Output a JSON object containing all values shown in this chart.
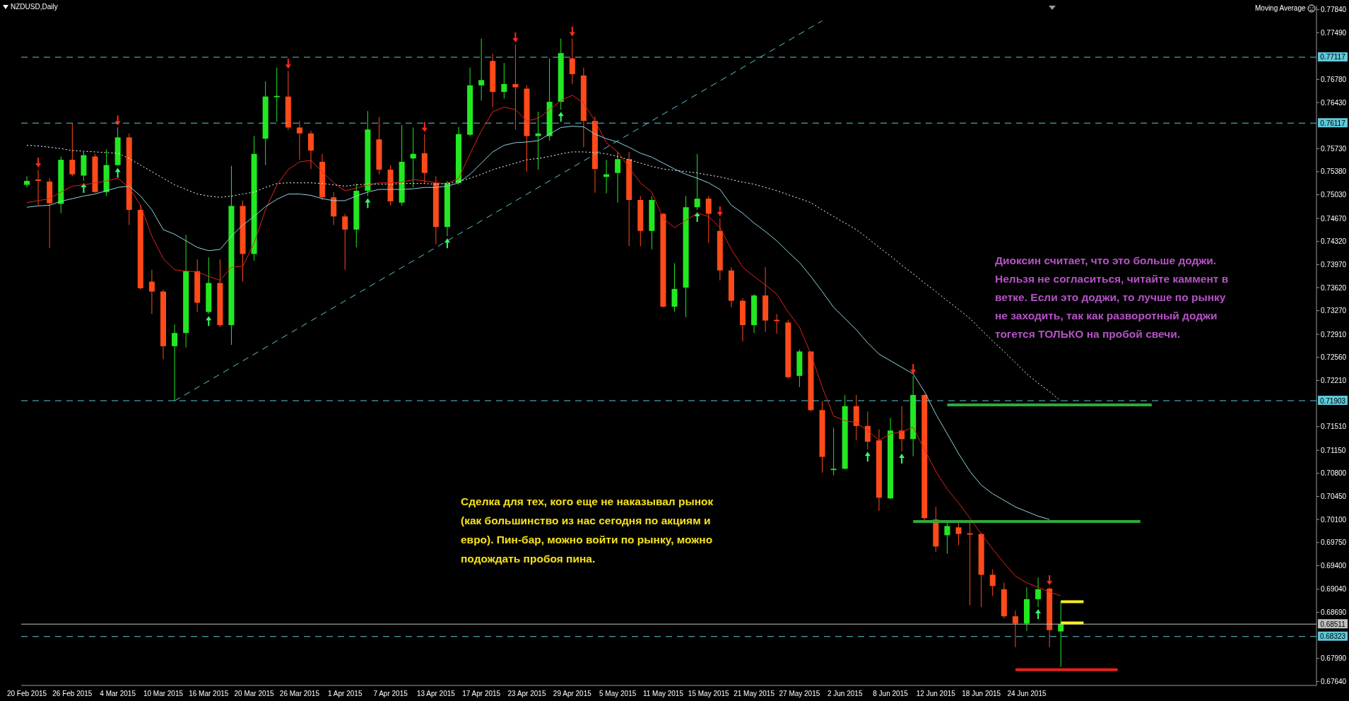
{
  "chart_data": {
    "type": "candlestick",
    "title": "NZDUSD,Daily",
    "annotations": [
      "Moving Average",
      "Сделка для тех, кого еще не наказывал рынок (как большинство из нас сегодня по акциям и евро). Пин-бар, можно войти по рынку, можно подождать пробоя пина.",
      "Диоксин считает, что это больше доджи. Нельзя не согласиться, читайте каммент в ветке. Если это доджи, то лучше по рынку не заходить, так как разворотный доджи тогется ТОЛЬКО на пробой свечи."
    ],
    "categories": [
      "20 Feb 2015",
      null,
      null,
      null,
      "26 Feb 2015",
      null,
      null,
      null,
      "4 Mar 2015",
      null,
      null,
      null,
      "10 Mar 2015",
      null,
      null,
      null,
      "16 Mar 2015",
      null,
      null,
      null,
      "20 Mar 2015",
      null,
      null,
      null,
      "26 Mar 2015",
      null,
      null,
      null,
      "1 Apr 2015",
      null,
      null,
      null,
      "7 Apr 2015",
      null,
      null,
      null,
      "13 Apr 2015",
      null,
      null,
      null,
      "17 Apr 2015",
      null,
      null,
      null,
      "23 Apr 2015",
      null,
      null,
      null,
      "29 Apr 2015",
      null,
      null,
      null,
      "5 May 2015",
      null,
      null,
      null,
      "11 May 2015",
      null,
      null,
      null,
      "15 May 2015",
      null,
      null,
      null,
      "21 May 2015",
      null,
      null,
      null,
      "27 May 2015",
      null,
      null,
      null,
      "2 Jun 2015",
      null,
      null,
      null,
      "8 Jun 2015",
      null,
      null,
      null,
      "12 Jun 2015",
      null,
      null,
      null,
      "18 Jun 2015",
      null,
      null,
      null,
      "24 Jun 2015",
      null,
      null,
      null,
      null,
      null,
      null,
      null,
      null,
      null,
      null,
      null,
      null,
      null,
      null,
      null,
      null,
      null,
      null,
      null,
      null,
      null,
      null,
      null,
      null,
      null
    ],
    "ohlc": [
      [
        0.7518,
        0.7531,
        0.7514,
        0.7524
      ],
      [
        0.7526,
        0.7541,
        0.7487,
        0.7524
      ],
      [
        0.7523,
        0.7528,
        0.7422,
        0.749
      ],
      [
        0.7489,
        0.7561,
        0.7475,
        0.7556
      ],
      [
        0.7556,
        0.7612,
        0.7531,
        0.7534
      ],
      [
        0.7532,
        0.7568,
        0.7524,
        0.7563
      ],
      [
        0.7561,
        0.7565,
        0.7506,
        0.7507
      ],
      [
        0.7507,
        0.7572,
        0.7501,
        0.7548
      ],
      [
        0.7548,
        0.7605,
        0.7547,
        0.759
      ],
      [
        0.759,
        0.7596,
        0.7457,
        0.748
      ],
      [
        0.748,
        0.7487,
        0.7359,
        0.7361
      ],
      [
        0.7371,
        0.7389,
        0.7322,
        0.7356
      ],
      [
        0.7356,
        0.7359,
        0.7253,
        0.7273
      ],
      [
        0.7273,
        0.7306,
        0.719,
        0.7293
      ],
      [
        0.7293,
        0.7442,
        0.7271,
        0.7387
      ],
      [
        0.7387,
        0.7405,
        0.7325,
        0.7339
      ],
      [
        0.7325,
        0.7408,
        0.7322,
        0.7369
      ],
      [
        0.7369,
        0.7405,
        0.7302,
        0.7305
      ],
      [
        0.7305,
        0.7547,
        0.7275,
        0.7486
      ],
      [
        0.7486,
        0.7494,
        0.7371,
        0.7413
      ],
      [
        0.7413,
        0.7592,
        0.7403,
        0.7565
      ],
      [
        0.7588,
        0.7675,
        0.7548,
        0.7652
      ],
      [
        0.7651,
        0.7696,
        0.7614,
        0.7653
      ],
      [
        0.7652,
        0.7691,
        0.7601,
        0.7605
      ],
      [
        0.7605,
        0.7615,
        0.7556,
        0.7596
      ],
      [
        0.7596,
        0.76,
        0.7542,
        0.757
      ],
      [
        0.7553,
        0.7565,
        0.7495,
        0.7499
      ],
      [
        0.7499,
        0.7507,
        0.7457,
        0.747
      ],
      [
        0.747,
        0.7474,
        0.7389,
        0.745
      ],
      [
        0.745,
        0.752,
        0.7423,
        0.7509
      ],
      [
        0.7509,
        0.763,
        0.7501,
        0.7602
      ],
      [
        0.7587,
        0.7621,
        0.7534,
        0.7541
      ],
      [
        0.7541,
        0.7548,
        0.7487,
        0.7493
      ],
      [
        0.7491,
        0.7609,
        0.7486,
        0.7553
      ],
      [
        0.7558,
        0.7605,
        0.7514,
        0.7565
      ],
      [
        0.7566,
        0.7595,
        0.752,
        0.7536
      ],
      [
        0.7521,
        0.7531,
        0.7428,
        0.7454
      ],
      [
        0.7454,
        0.7524,
        0.744,
        0.7521
      ],
      [
        0.7521,
        0.7606,
        0.7518,
        0.7595
      ],
      [
        0.7594,
        0.7696,
        0.7592,
        0.7669
      ],
      [
        0.7669,
        0.774,
        0.7646,
        0.7677
      ],
      [
        0.7706,
        0.7717,
        0.7636,
        0.7659
      ],
      [
        0.7659,
        0.7703,
        0.7649,
        0.7671
      ],
      [
        0.7671,
        0.7731,
        0.7602,
        0.7666
      ],
      [
        0.7664,
        0.7669,
        0.7538,
        0.7592
      ],
      [
        0.7592,
        0.7629,
        0.7541,
        0.7596
      ],
      [
        0.7592,
        0.771,
        0.7585,
        0.7644
      ],
      [
        0.7644,
        0.774,
        0.7632,
        0.7718
      ],
      [
        0.771,
        0.774,
        0.7671,
        0.7686
      ],
      [
        0.7684,
        0.7696,
        0.7575,
        0.7615
      ],
      [
        0.7615,
        0.7622,
        0.7506,
        0.7542
      ],
      [
        0.753,
        0.7556,
        0.7505,
        0.7534
      ],
      [
        0.7536,
        0.7568,
        0.7491,
        0.7557
      ],
      [
        0.7557,
        0.7568,
        0.7425,
        0.7495
      ],
      [
        0.7495,
        0.7501,
        0.7425,
        0.7448
      ],
      [
        0.7448,
        0.7501,
        0.742,
        0.7495
      ],
      [
        0.7474,
        0.7475,
        0.7332,
        0.7333
      ],
      [
        0.7333,
        0.7399,
        0.7325,
        0.736
      ],
      [
        0.7362,
        0.7501,
        0.7317,
        0.7484
      ],
      [
        0.7484,
        0.7565,
        0.748,
        0.7497
      ],
      [
        0.7497,
        0.7501,
        0.743,
        0.7474
      ],
      [
        0.7448,
        0.7467,
        0.7373,
        0.7388
      ],
      [
        0.7388,
        0.7393,
        0.7332,
        0.7342
      ],
      [
        0.7342,
        0.7346,
        0.728,
        0.7305
      ],
      [
        0.7305,
        0.7352,
        0.7293,
        0.735
      ],
      [
        0.735,
        0.7393,
        0.7295,
        0.7312
      ],
      [
        0.7313,
        0.7322,
        0.7292,
        0.7311
      ],
      [
        0.7309,
        0.7313,
        0.7224,
        0.7226
      ],
      [
        0.7228,
        0.7268,
        0.7211,
        0.7265
      ],
      [
        0.7265,
        0.7265,
        0.7174,
        0.7176
      ],
      [
        0.7176,
        0.719,
        0.7081,
        0.7105
      ],
      [
        0.7085,
        0.7149,
        0.7077,
        0.7087
      ],
      [
        0.7087,
        0.7199,
        0.7086,
        0.7182
      ],
      [
        0.7182,
        0.7199,
        0.713,
        0.7152
      ],
      [
        0.7152,
        0.7174,
        0.7116,
        0.7128
      ],
      [
        0.713,
        0.7147,
        0.7023,
        0.7043
      ],
      [
        0.7042,
        0.7164,
        0.7041,
        0.7145
      ],
      [
        0.7145,
        0.7182,
        0.7113,
        0.7132
      ],
      [
        0.7132,
        0.7228,
        0.7106,
        0.7199
      ],
      [
        0.7199,
        0.72,
        0.7007,
        0.7012
      ],
      [
        0.701,
        0.7029,
        0.6961,
        0.6969
      ],
      [
        0.6986,
        0.7008,
        0.6958,
        0.7
      ],
      [
        0.6998,
        0.7008,
        0.6971,
        0.6988
      ],
      [
        0.6989,
        0.7005,
        0.688,
        0.6987
      ],
      [
        0.6988,
        0.699,
        0.6877,
        0.6926
      ],
      [
        0.6926,
        0.6934,
        0.6894,
        0.6909
      ],
      [
        0.6904,
        0.6914,
        0.686,
        0.6863
      ],
      [
        0.6863,
        0.6872,
        0.6816,
        0.6852
      ],
      [
        0.6852,
        0.6907,
        0.6841,
        0.6889
      ],
      [
        0.6889,
        0.6922,
        0.6877,
        0.6904
      ],
      [
        0.6905,
        0.6907,
        0.6816,
        0.6842
      ],
      [
        0.684,
        0.6886,
        0.6786,
        0.6851
      ],
      null,
      null,
      null,
      null,
      null,
      null,
      null,
      null,
      null,
      null,
      null,
      null,
      null,
      null,
      null,
      null,
      null,
      null,
      null,
      null,
      null,
      null
    ],
    "colors": [
      "#22e822",
      "#ff4a1a",
      "#ff4a1a",
      "#22e822",
      "#ff4a1a",
      "#22e822",
      "#ff4a1a",
      "#22e822",
      "#22e822",
      "#ff4a1a",
      "#ff4a1a",
      "#ff4a1a",
      "#ff4a1a",
      "#22e822",
      "#22e822",
      "#ff4a1a",
      "#22e822",
      "#ff4a1a",
      "#22e822",
      "#ff4a1a",
      "#22e822",
      "#22e822",
      "#22e822",
      "#ff4a1a",
      "#ff4a1a",
      "#ff4a1a",
      "#ff4a1a",
      "#ff4a1a",
      "#ff4a1a",
      "#22e822",
      "#22e822",
      "#ff4a1a",
      "#ff4a1a",
      "#22e822",
      "#22e822",
      "#ff4a1a",
      "#ff4a1a",
      "#22e822",
      "#22e822",
      "#22e822",
      "#22e822",
      "#ff4a1a",
      "#22e822",
      "#ff4a1a",
      "#ff4a1a",
      "#22e822",
      "#22e822",
      "#22e822",
      "#ff4a1a",
      "#ff4a1a",
      "#ff4a1a",
      "#22e822",
      "#22e822",
      "#ff4a1a",
      "#ff4a1a",
      "#22e822",
      "#ff4a1a",
      "#22e822",
      "#22e822",
      "#22e822",
      "#ff4a1a",
      "#ff4a1a",
      "#ff4a1a",
      "#ff4a1a",
      "#22e822",
      "#ff4a1a",
      "#ff4a1a",
      "#ff4a1a",
      "#22e822",
      "#ff4a1a",
      "#ff4a1a",
      "#22e822",
      "#22e822",
      "#ff4a1a",
      "#ff4a1a",
      "#ff4a1a",
      "#22e822",
      "#ff4a1a",
      "#22e822",
      "#ff4a1a",
      "#ff4a1a",
      "#22e822",
      "#ff4a1a",
      "#ff4a1a",
      "#ff4a1a",
      "#ff4a1a",
      "#ff4a1a",
      "#ff4a1a",
      "#22e822",
      "#22e822",
      "#ff4a1a",
      "#22e822",
      null,
      null,
      null,
      null,
      null,
      null,
      null,
      null,
      null,
      null,
      null,
      null,
      null,
      null,
      null,
      null,
      null,
      null,
      null,
      null,
      null,
      null
    ],
    "series": [
      {
        "type": "line",
        "color": "#e0241c",
        "values": [
          0.7491,
          0.7494,
          0.7497,
          0.7507,
          0.7516,
          0.7518,
          0.7521,
          0.7524,
          0.7528,
          0.7514,
          0.7487,
          0.744,
          0.7406,
          0.7389,
          0.7387,
          0.7386,
          0.7379,
          0.7373,
          0.7393,
          0.7394,
          0.743,
          0.748,
          0.7518,
          0.7541,
          0.7553,
          0.7555,
          0.7538,
          0.7521,
          0.7509,
          0.7513,
          0.7518,
          0.7521,
          0.7521,
          0.7522,
          0.7526,
          0.7524,
          0.7521,
          0.752,
          0.7528,
          0.7565,
          0.76,
          0.7629,
          0.7636,
          0.7632,
          0.7615,
          0.7619,
          0.7632,
          0.7646,
          0.7654,
          0.7642,
          0.7615,
          0.7582,
          0.7568,
          0.7544,
          0.7521,
          0.7507,
          0.7467,
          0.7453,
          0.7464,
          0.7475,
          0.747,
          0.7453,
          0.742,
          0.7393,
          0.7379,
          0.7366,
          0.7352,
          0.7325,
          0.7302,
          0.7261,
          0.7211,
          0.7167,
          0.716,
          0.7157,
          0.7145,
          0.713,
          0.714,
          0.7143,
          0.715,
          0.7116,
          0.7083,
          0.7056,
          0.7035,
          0.7012,
          0.6988,
          0.6965,
          0.6944,
          0.6924,
          0.6914,
          0.6907,
          0.69,
          0.6894,
          null,
          null,
          null,
          null,
          null,
          null,
          null,
          null,
          null,
          null,
          null,
          null,
          null,
          null,
          null,
          null,
          null,
          null,
          null,
          null,
          null,
          null
        ]
      },
      {
        "type": "line",
        "color": "#8fd3e0",
        "values": [
          0.7484,
          0.7486,
          0.7487,
          0.7493,
          0.7497,
          0.7501,
          0.7504,
          0.7509,
          0.7514,
          0.7516,
          0.7501,
          0.748,
          0.745,
          0.7443,
          0.7433,
          0.7423,
          0.7418,
          0.742,
          0.744,
          0.7457,
          0.747,
          0.7485,
          0.7496,
          0.7504,
          0.7504,
          0.7502,
          0.7497,
          0.7494,
          0.7494,
          0.7501,
          0.7507,
          0.7511,
          0.7511,
          0.7511,
          0.7512,
          0.7514,
          0.7514,
          0.7516,
          0.7521,
          0.7534,
          0.7551,
          0.7568,
          0.7578,
          0.7582,
          0.7583,
          0.7585,
          0.7595,
          0.7605,
          0.7607,
          0.7606,
          0.7595,
          0.7588,
          0.7583,
          0.7575,
          0.7566,
          0.756,
          0.7551,
          0.7542,
          0.7534,
          0.7528,
          0.7521,
          0.7511,
          0.7487,
          0.7475,
          0.746,
          0.7447,
          0.7433,
          0.7416,
          0.74,
          0.7379,
          0.7356,
          0.7332,
          0.7315,
          0.7298,
          0.7278,
          0.7261,
          0.7251,
          0.7241,
          0.7231,
          0.7204,
          0.717,
          0.714,
          0.711,
          0.7083,
          0.7062,
          0.7049,
          0.7039,
          0.7029,
          0.7022,
          0.7015,
          0.701,
          null,
          null,
          null,
          null,
          null,
          null,
          null,
          null,
          null,
          null,
          null,
          null,
          null,
          null,
          null,
          null,
          null,
          null,
          null,
          null,
          null,
          null,
          null
        ]
      },
      {
        "type": "line",
        "color": "#ffffff",
        "line_style": "dotted",
        "values": [
          0.7578,
          0.7577,
          0.7575,
          0.7573,
          0.757,
          0.7569,
          0.7568,
          0.7567,
          0.7566,
          0.7558,
          0.7548,
          0.7538,
          0.7528,
          0.7518,
          0.7511,
          0.7504,
          0.7501,
          0.7499,
          0.7501,
          0.7504,
          0.7507,
          0.7514,
          0.752,
          0.7521,
          0.7521,
          0.7521,
          0.752,
          0.7518,
          0.7516,
          0.7518,
          0.7519,
          0.7519,
          0.7519,
          0.752,
          0.752,
          0.752,
          0.7519,
          0.752,
          0.7523,
          0.7528,
          0.7534,
          0.7541,
          0.7546,
          0.7551,
          0.7556,
          0.7558,
          0.7561,
          0.7565,
          0.7568,
          0.7568,
          0.7567,
          0.7565,
          0.7561,
          0.7556,
          0.7551,
          0.7546,
          0.7542,
          0.754,
          0.7538,
          0.7536,
          0.7533,
          0.753,
          0.7526,
          0.7522,
          0.7519,
          0.7514,
          0.7509,
          0.7503,
          0.7497,
          0.7491,
          0.748,
          0.747,
          0.746,
          0.745,
          0.7437,
          0.7423,
          0.741,
          0.7396,
          0.7383,
          0.7369,
          0.7356,
          0.7342,
          0.7329,
          0.7315,
          0.7298,
          0.7281,
          0.7265,
          0.7248,
          0.7231,
          0.7217,
          0.7204,
          0.719,
          null,
          null,
          null,
          null,
          null,
          null,
          null,
          null,
          null,
          null,
          null,
          null,
          null,
          null,
          null,
          null,
          null,
          null,
          null,
          null,
          null,
          null
        ]
      },
      {
        "type": "line",
        "color": "#5fc8d8",
        "line_style": "dashed",
        "values": [
          null,
          null,
          null,
          null,
          null,
          null,
          null,
          null,
          null,
          null,
          null,
          null,
          null,
          0.719,
          null,
          null,
          null,
          null,
          null,
          null,
          null,
          null,
          null,
          null,
          null,
          null,
          null,
          null,
          null,
          null,
          null,
          null,
          null,
          null,
          null,
          null,
          null,
          null,
          null,
          null,
          null,
          null,
          null,
          null,
          null,
          null,
          null,
          null,
          null,
          null,
          null,
          null,
          null,
          null,
          null,
          null,
          null,
          null,
          null,
          null,
          null,
          null,
          null,
          null,
          null,
          null,
          null,
          null,
          null,
          null,
          0.7767,
          null,
          null,
          null,
          null,
          null,
          null,
          null,
          null,
          null,
          null,
          null,
          null,
          null,
          null,
          null,
          null,
          null,
          null,
          null,
          null,
          null,
          null,
          null,
          null,
          null,
          null,
          null,
          null,
          null,
          null,
          null,
          null,
          null,
          null,
          null,
          null,
          null,
          null,
          null,
          null,
          null,
          null,
          null
        ]
      },
      {
        "type": "line",
        "color": "#2eaa3c",
        "values": [
          null,
          null,
          null,
          null,
          null,
          null,
          null,
          null,
          null,
          null,
          null,
          null,
          null,
          null,
          null,
          null,
          null,
          null,
          null,
          null,
          null,
          null,
          null,
          null,
          null,
          null,
          null,
          null,
          null,
          null,
          null,
          null,
          null,
          null,
          null,
          null,
          null,
          null,
          null,
          null,
          null,
          null,
          null,
          null,
          null,
          null,
          null,
          null,
          null,
          null,
          null,
          null,
          null,
          null,
          null,
          null,
          null,
          null,
          null,
          null,
          null,
          null,
          null,
          null,
          null,
          null,
          null,
          null,
          null,
          null,
          null,
          null,
          null,
          null,
          null,
          null,
          null,
          null,
          null,
          null,
          null,
          0.7184,
          0.7184,
          0.7184,
          0.7184,
          0.7184,
          0.7184,
          0.7184,
          0.7184,
          0.7184,
          0.7184,
          0.7184,
          0.7184,
          0.7184,
          0.7184,
          0.7184,
          0.7184,
          0.7184,
          0.7184,
          0.7184,
          null,
          null,
          null,
          null,
          null,
          null,
          null,
          null,
          null,
          null,
          null,
          null,
          null,
          null
        ]
      },
      {
        "type": "line",
        "color": "#2eaa3c",
        "values": [
          null,
          null,
          null,
          null,
          null,
          null,
          null,
          null,
          null,
          null,
          null,
          null,
          null,
          null,
          null,
          null,
          null,
          null,
          null,
          null,
          null,
          null,
          null,
          null,
          null,
          null,
          null,
          null,
          null,
          null,
          null,
          null,
          null,
          null,
          null,
          null,
          null,
          null,
          null,
          null,
          null,
          null,
          null,
          null,
          null,
          null,
          null,
          null,
          null,
          null,
          null,
          null,
          null,
          null,
          null,
          null,
          null,
          null,
          null,
          null,
          null,
          null,
          null,
          null,
          null,
          null,
          null,
          null,
          null,
          null,
          null,
          null,
          null,
          null,
          null,
          null,
          null,
          null,
          0.7007,
          0.7007,
          0.7007,
          0.7007,
          0.7007,
          0.7007,
          0.7007,
          0.7007,
          0.7007,
          0.7007,
          0.7007,
          0.7007,
          0.7007,
          0.7007,
          0.7007,
          0.7007,
          0.7007,
          0.7007,
          0.7007,
          0.7007,
          0.7007,
          null,
          null,
          null,
          null,
          null,
          null,
          null,
          null,
          null,
          null,
          null,
          null,
          null,
          null,
          null
        ]
      },
      {
        "type": "line",
        "color": "#f5f01e",
        "values": [
          null,
          null,
          null,
          null,
          null,
          null,
          null,
          null,
          null,
          null,
          null,
          null,
          null,
          null,
          null,
          null,
          null,
          null,
          null,
          null,
          null,
          null,
          null,
          null,
          null,
          null,
          null,
          null,
          null,
          null,
          null,
          null,
          null,
          null,
          null,
          null,
          null,
          null,
          null,
          null,
          null,
          null,
          null,
          null,
          null,
          null,
          null,
          null,
          null,
          null,
          null,
          null,
          null,
          null,
          null,
          null,
          null,
          null,
          null,
          null,
          null,
          null,
          null,
          null,
          null,
          null,
          null,
          null,
          null,
          null,
          null,
          null,
          null,
          null,
          null,
          null,
          null,
          null,
          null,
          null,
          null,
          null,
          null,
          null,
          null,
          null,
          null,
          null,
          null,
          null,
          null,
          0.6885,
          0.6885,
          0.6885,
          null,
          null,
          null,
          null,
          null,
          null,
          null,
          null,
          null,
          null,
          null,
          null,
          null,
          null,
          null,
          null,
          null,
          null,
          null,
          null
        ]
      },
      {
        "type": "line",
        "color": "#f5f01e",
        "values": [
          null,
          null,
          null,
          null,
          null,
          null,
          null,
          null,
          null,
          null,
          null,
          null,
          null,
          null,
          null,
          null,
          null,
          null,
          null,
          null,
          null,
          null,
          null,
          null,
          null,
          null,
          null,
          null,
          null,
          null,
          null,
          null,
          null,
          null,
          null,
          null,
          null,
          null,
          null,
          null,
          null,
          null,
          null,
          null,
          null,
          null,
          null,
          null,
          null,
          null,
          null,
          null,
          null,
          null,
          null,
          null,
          null,
          null,
          null,
          null,
          null,
          null,
          null,
          null,
          null,
          null,
          null,
          null,
          null,
          null,
          null,
          null,
          null,
          null,
          null,
          null,
          null,
          null,
          null,
          null,
          null,
          null,
          null,
          null,
          null,
          null,
          null,
          null,
          null,
          null,
          null,
          0.6853,
          0.6853,
          0.6853,
          null,
          null,
          null,
          null,
          null,
          null,
          null,
          null,
          null,
          null,
          null,
          null,
          null,
          null,
          null,
          null,
          null,
          null,
          null,
          null
        ]
      },
      {
        "type": "line",
        "color": "#e8201c",
        "values": [
          null,
          null,
          null,
          null,
          null,
          null,
          null,
          null,
          null,
          null,
          null,
          null,
          null,
          null,
          null,
          null,
          null,
          null,
          null,
          null,
          null,
          null,
          null,
          null,
          null,
          null,
          null,
          null,
          null,
          null,
          null,
          null,
          null,
          null,
          null,
          null,
          null,
          null,
          null,
          null,
          null,
          null,
          null,
          null,
          null,
          null,
          null,
          null,
          null,
          null,
          null,
          null,
          null,
          null,
          null,
          null,
          null,
          null,
          null,
          null,
          null,
          null,
          null,
          null,
          null,
          null,
          null,
          null,
          null,
          null,
          null,
          null,
          null,
          null,
          null,
          null,
          null,
          null,
          null,
          null,
          null,
          null,
          null,
          null,
          null,
          null,
          null,
          0.6782,
          0.6782,
          0.6782,
          0.6782,
          0.6782,
          0.6782,
          0.6782,
          0.6782,
          0.6782,
          0.6782,
          null,
          null,
          null,
          null,
          null,
          null,
          null,
          null,
          null,
          null,
          null,
          null,
          null,
          null,
          null,
          null,
          null
        ]
      }
    ],
    "ref_lines": [
      {
        "axis": "y",
        "value": 0.77117,
        "label": "0.77117",
        "color": "#5fc8d8",
        "line_style": "dashed"
      },
      {
        "axis": "y",
        "value": 0.76117,
        "label": "0.76117",
        "color": "#5fc8d8",
        "line_style": "dashed"
      },
      {
        "axis": "y",
        "value": 0.71903,
        "label": "0.71903",
        "color": "#5fc8d8",
        "line_style": "dashed"
      },
      {
        "axis": "y",
        "value": 0.68511,
        "label": "0.68511",
        "color": "#c0c0c0",
        "line_style": "solid"
      },
      {
        "axis": "y",
        "value": 0.68323,
        "label": "0.68323",
        "color": "#5fc8d8",
        "line_style": "dashed"
      }
    ],
    "ylim": [
      0.6758,
      0.779
    ],
    "yticks": [
      {
        "value": 0.7784,
        "label": "0.77840"
      },
      {
        "value": 0.7749,
        "label": "0.77490"
      },
      {
        "value": 0.7678,
        "label": "0.76780"
      },
      {
        "value": 0.7643,
        "label": "0.76430"
      },
      {
        "value": 0.7573,
        "label": "0.75730"
      },
      {
        "value": 0.7538,
        "label": "0.75380"
      },
      {
        "value": 0.7503,
        "label": "0.75030"
      },
      {
        "value": 0.7467,
        "label": "0.74670"
      },
      {
        "value": 0.7432,
        "label": "0.74320"
      },
      {
        "value": 0.7397,
        "label": "0.73970"
      },
      {
        "value": 0.7362,
        "label": "0.73620"
      },
      {
        "value": 0.7327,
        "label": "0.73270"
      },
      {
        "value": 0.7291,
        "label": "0.72910"
      },
      {
        "value": 0.7256,
        "label": "0.72560"
      },
      {
        "value": 0.7221,
        "label": "0.72210"
      },
      {
        "value": 0.7151,
        "label": "0.71510"
      },
      {
        "value": 0.7115,
        "label": "0.71150"
      },
      {
        "value": 0.708,
        "label": "0.70800"
      },
      {
        "value": 0.7045,
        "label": "0.70450"
      },
      {
        "value": 0.701,
        "label": "0.70100"
      },
      {
        "value": 0.6975,
        "label": "0.69750"
      },
      {
        "value": 0.694,
        "label": "0.69400"
      },
      {
        "value": 0.6904,
        "label": "0.69040"
      },
      {
        "value": 0.6869,
        "label": "0.68690"
      },
      {
        "value": 0.6799,
        "label": "0.67990"
      },
      {
        "value": 0.6764,
        "label": "0.67640"
      }
    ]
  }
}
